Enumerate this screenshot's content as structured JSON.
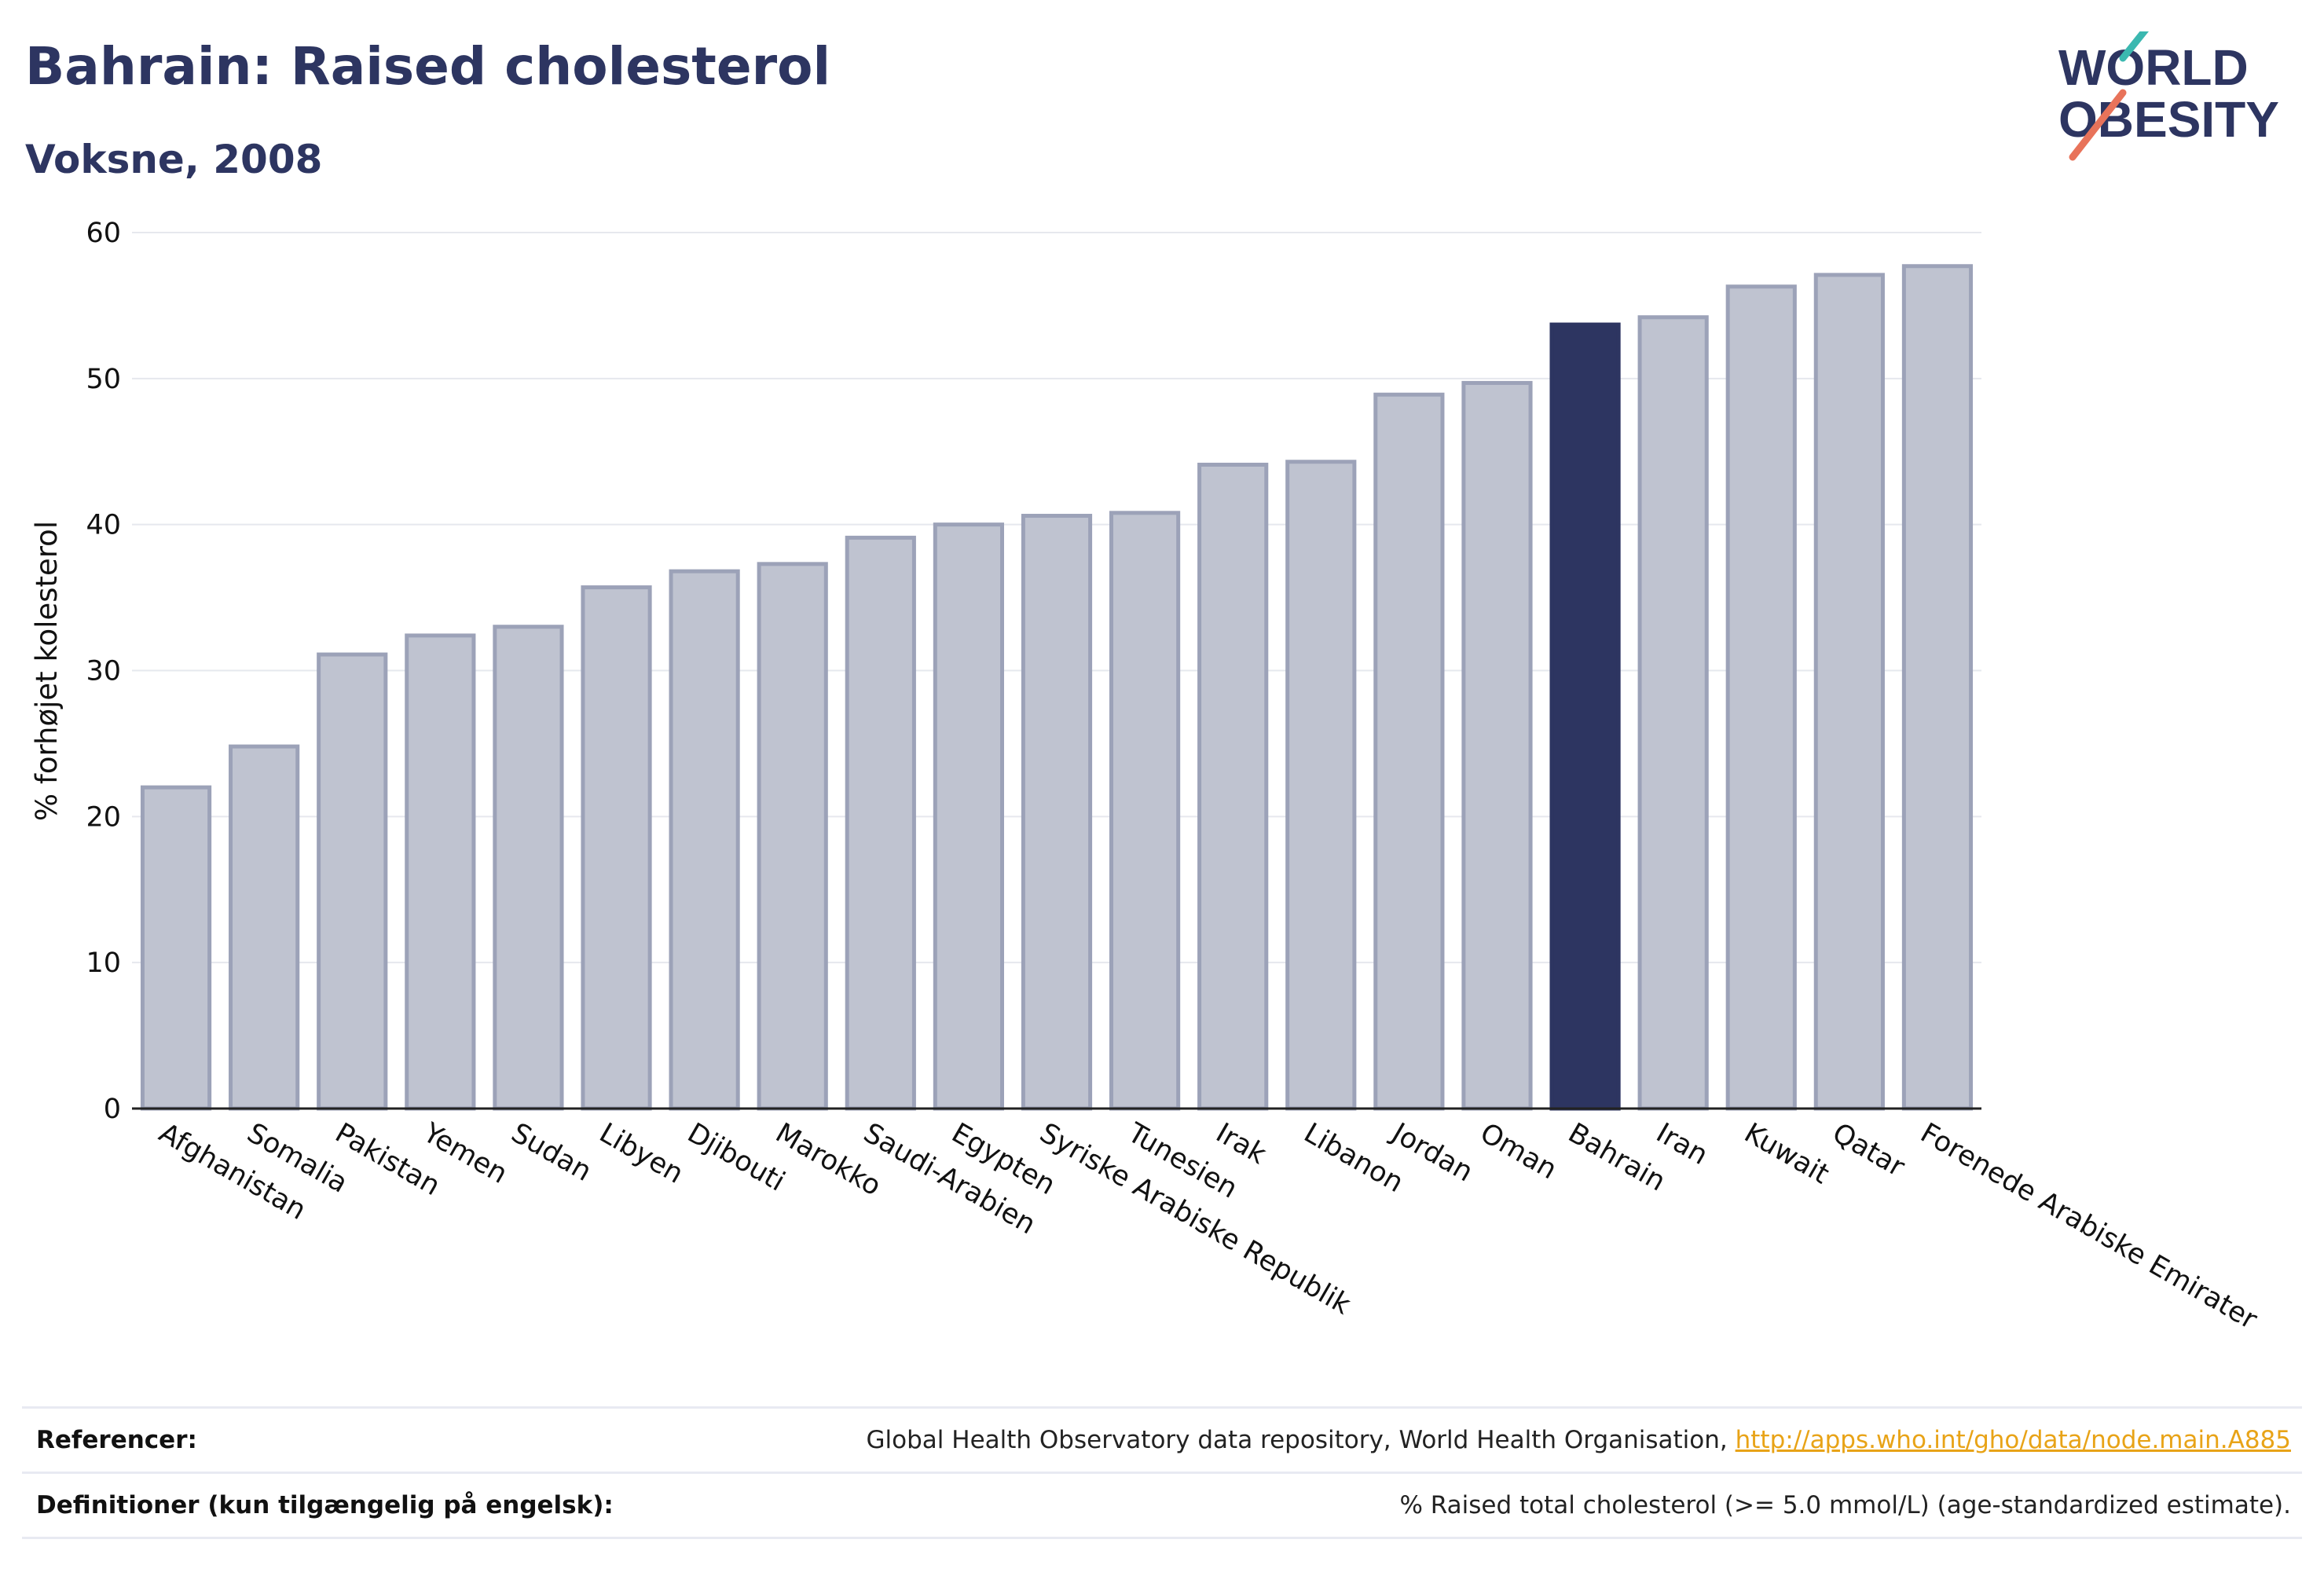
{
  "header": {
    "title": "Bahrain: Raised cholesterol",
    "subtitle": "Voksne, 2008"
  },
  "logo": {
    "line1": "WORLD",
    "line2": "OBESITY"
  },
  "colors": {
    "highlight": "#2d3561",
    "bar": "#bfc3d0",
    "bar_stroke": "#9ca2b8",
    "text": "#2d3561",
    "link": "#e8a317"
  },
  "chart_data": {
    "type": "bar",
    "ylabel": "% forhøjet kolesterol",
    "ylim": [
      0,
      60
    ],
    "yticks": [
      0,
      10,
      20,
      30,
      40,
      50,
      60
    ],
    "grid": true,
    "highlight": "Bahrain",
    "categories": [
      "Afghanistan",
      "Somalia",
      "Pakistan",
      "Yemen",
      "Sudan",
      "Libyen",
      "Djibouti",
      "Marokko",
      "Saudi-Arabien",
      "Egypten",
      "Syriske Arabiske Republik",
      "Tunesien",
      "Irak",
      "Libanon",
      "Jordan",
      "Oman",
      "Bahrain",
      "Iran",
      "Kuwait",
      "Qatar",
      "Forenede Arabiske Emirater"
    ],
    "values": [
      22.0,
      24.8,
      31.1,
      32.4,
      33.0,
      35.7,
      36.8,
      37.3,
      39.1,
      40.0,
      40.6,
      40.8,
      44.1,
      44.3,
      48.9,
      49.7,
      53.7,
      54.2,
      56.3,
      57.1,
      57.7
    ]
  },
  "references": {
    "ref_label": "Referencer:",
    "ref_text": "Global Health Observatory data repository, World Health Organisation, ",
    "ref_link": "http://apps.who.int/gho/data/node.main.A885",
    "def_label": "Definitioner (kun tilgængelig på engelsk):",
    "def_text": "% Raised total cholesterol (>= 5.0 mmol/L) (age-standardized estimate)."
  }
}
